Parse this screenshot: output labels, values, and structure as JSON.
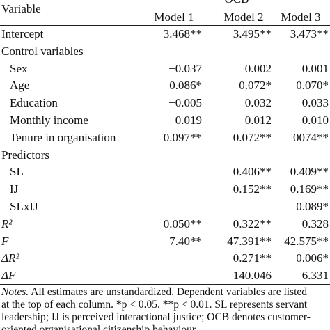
{
  "header": {
    "variable": "Variable",
    "group": "OCB",
    "models": [
      "Model 1",
      "Model 2",
      "Model 3"
    ]
  },
  "table": {
    "rows": [
      {
        "label": "Intercept",
        "indent": false,
        "values": [
          "3.468**",
          "3.495**",
          "3.473**"
        ]
      },
      {
        "label": "Control variables",
        "indent": false
      },
      {
        "label": "Sex",
        "indent": true,
        "values": [
          "−0.037",
          "0.002",
          "0.001"
        ]
      },
      {
        "label": "Age",
        "indent": true,
        "values": [
          "0.086*",
          "0.072*",
          "0.070*"
        ]
      },
      {
        "label": "Education",
        "indent": true,
        "values": [
          "−0.005",
          "0.032",
          "0.033"
        ]
      },
      {
        "label": "Monthly income",
        "indent": true,
        "values": [
          "0.019",
          "0.012",
          "0.010"
        ]
      },
      {
        "label": "Tenure in organisation",
        "indent": true,
        "values": [
          "0.097**",
          "0.072**",
          "0074**"
        ]
      },
      {
        "label": "Predictors",
        "indent": false
      },
      {
        "label": "SL",
        "indent": true,
        "values": [
          null,
          "0.406**",
          "0.409**"
        ]
      },
      {
        "label": "IJ",
        "indent": true,
        "values": [
          null,
          "0.152**",
          "0.169**"
        ]
      },
      {
        "label": "SLxIJ",
        "indent": true,
        "values": [
          null,
          null,
          "0.089*"
        ]
      },
      {
        "label": "R²",
        "indent": false,
        "italic": true,
        "values": [
          "0.050**",
          "0.322**",
          "0.328"
        ]
      },
      {
        "label": "F",
        "indent": false,
        "italic": true,
        "values": [
          "7.40**",
          "47.391**",
          "42.575**"
        ]
      },
      {
        "label": "ΔR²",
        "indent": false,
        "italic": true,
        "values": [
          null,
          "0.271**",
          "0.006*"
        ]
      },
      {
        "label": "ΔF",
        "indent": false,
        "italic": true,
        "values": [
          null,
          "140.046",
          "6.331"
        ]
      }
    ]
  },
  "notes": {
    "label": "Notes.",
    "lines": [
      "All estimates are unstandardized. Dependent variables are listed",
      "at the top of each column. *p < 0.05. **p < 0.01. SL represents servant",
      "leadership; IJ is perceived interactional justice; OCB denotes customer-",
      "oriented organisational citizenship behaviour"
    ]
  }
}
